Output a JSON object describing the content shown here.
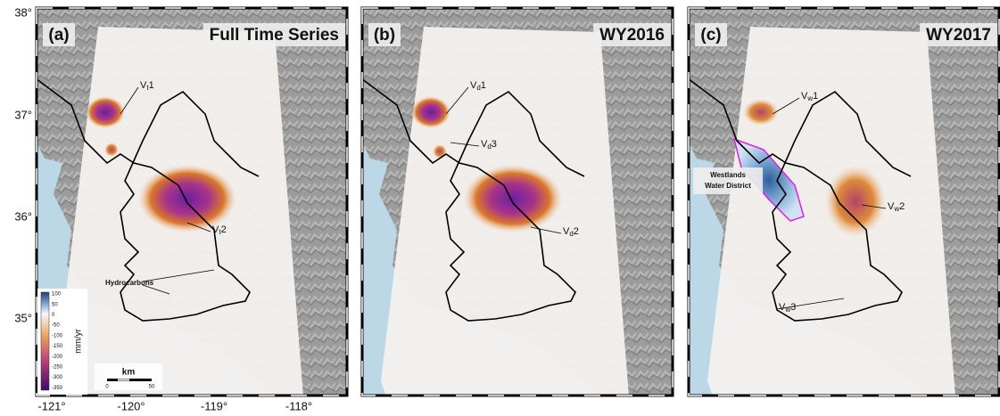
{
  "panels": [
    {
      "label": "(a)",
      "title": "Full Time Series",
      "annotations": [
        {
          "base": "V",
          "sub": "t",
          "num": "1"
        },
        {
          "base": "V",
          "sub": "t",
          "num": "2"
        }
      ],
      "notes": [
        "Hydrocarbons"
      ]
    },
    {
      "label": "(b)",
      "title": "WY2016",
      "annotations": [
        {
          "base": "V",
          "sub": "d",
          "num": "1"
        },
        {
          "base": "V",
          "sub": "d",
          "num": "3"
        },
        {
          "base": "V",
          "sub": "d",
          "num": "2"
        }
      ],
      "notes": []
    },
    {
      "label": "(c)",
      "title": "WY2017",
      "annotations": [
        {
          "base": "V",
          "sub": "w",
          "num": "1"
        },
        {
          "base": "V",
          "sub": "w",
          "num": "2"
        },
        {
          "base": "V",
          "sub": "w",
          "num": "3"
        }
      ],
      "notes": [
        "Westlands",
        "Water District"
      ]
    }
  ],
  "y_axis_labels": [
    "38°",
    "37°",
    "36°",
    "35°"
  ],
  "x_axis_labels": [
    "-121°",
    "-120°",
    "-119°",
    "-118°"
  ],
  "colorbar": {
    "ticks": [
      "100",
      "50",
      "0",
      "-50",
      "-100",
      "-150",
      "-200",
      "-250",
      "-300",
      "-350"
    ],
    "unit": "mm/yr"
  },
  "scale_bar": {
    "unit": "km",
    "ticks": [
      "0",
      "50"
    ]
  }
}
